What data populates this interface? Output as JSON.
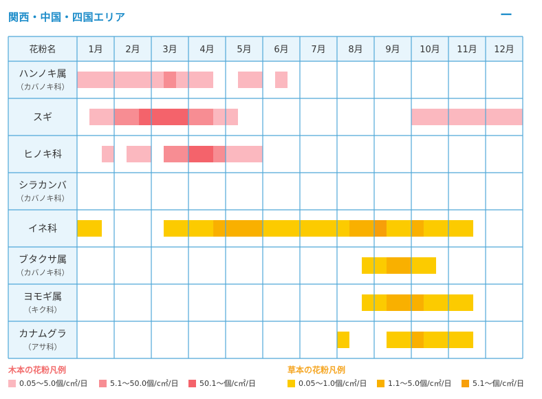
{
  "header": {
    "title": "関西・中国・四国エリア",
    "collapse_symbol": "ー",
    "title_color": "#1a8bc9"
  },
  "colors": {
    "grid_line": "#4fa8d8",
    "header_bg": "#e8f5fc",
    "name_col_bg": "#e8f5fc",
    "cell_bg": "#ffffff",
    "tree_legend_title": "#f26b6b",
    "grass_legend_title": "#f5a623"
  },
  "chart_data": {
    "type": "heatmap",
    "corner_label": "花粉名",
    "months": [
      "1月",
      "2月",
      "3月",
      "4月",
      "5月",
      "6月",
      "7月",
      "8月",
      "9月",
      "10月",
      "11月",
      "12月"
    ],
    "levels": {
      "t1": "#fbb8bf",
      "t2": "#f78d93",
      "t3": "#f4636b",
      "g1": "#fccb00",
      "g2": "#f9b000",
      "g3": "#f79f09"
    },
    "rows": [
      {
        "name": "ハンノキ属",
        "sub": "（カバノキ科）",
        "bars": [
          {
            "start": 1.0,
            "end": 3.333,
            "level": "t1"
          },
          {
            "start": 3.333,
            "end": 3.667,
            "level": "t2"
          },
          {
            "start": 3.667,
            "end": 4.667,
            "level": "t1"
          },
          {
            "start": 5.333,
            "end": 6.0,
            "level": "t1"
          },
          {
            "start": 6.333,
            "end": 6.667,
            "level": "t1"
          }
        ]
      },
      {
        "name": "スギ",
        "sub": "",
        "bars": [
          {
            "start": 1.333,
            "end": 2.0,
            "level": "t1"
          },
          {
            "start": 2.0,
            "end": 2.667,
            "level": "t2"
          },
          {
            "start": 2.667,
            "end": 4.0,
            "level": "t3"
          },
          {
            "start": 4.0,
            "end": 4.667,
            "level": "t2"
          },
          {
            "start": 4.667,
            "end": 5.333,
            "level": "t1"
          },
          {
            "start": 10.0,
            "end": 13.0,
            "level": "t1"
          }
        ]
      },
      {
        "name": "ヒノキ科",
        "sub": "",
        "bars": [
          {
            "start": 1.667,
            "end": 2.0,
            "level": "t1"
          },
          {
            "start": 2.333,
            "end": 3.0,
            "level": "t1"
          },
          {
            "start": 3.333,
            "end": 4.0,
            "level": "t2"
          },
          {
            "start": 4.0,
            "end": 4.667,
            "level": "t3"
          },
          {
            "start": 4.667,
            "end": 5.0,
            "level": "t2"
          },
          {
            "start": 5.0,
            "end": 6.0,
            "level": "t1"
          }
        ]
      },
      {
        "name": "シラカンバ",
        "sub": "（カバノキ科）",
        "bars": []
      },
      {
        "name": "イネ科",
        "sub": "",
        "bars": [
          {
            "start": 1.0,
            "end": 1.667,
            "level": "g1"
          },
          {
            "start": 3.333,
            "end": 4.667,
            "level": "g1"
          },
          {
            "start": 4.667,
            "end": 6.0,
            "level": "g2"
          },
          {
            "start": 6.0,
            "end": 8.333,
            "level": "g1"
          },
          {
            "start": 8.333,
            "end": 9.0,
            "level": "g2"
          },
          {
            "start": 9.0,
            "end": 9.333,
            "level": "g3"
          },
          {
            "start": 9.333,
            "end": 10.0,
            "level": "g1"
          },
          {
            "start": 10.0,
            "end": 10.333,
            "level": "g2"
          },
          {
            "start": 10.333,
            "end": 11.667,
            "level": "g1"
          }
        ]
      },
      {
        "name": "ブタクサ属",
        "sub": "（カバノキ科）",
        "bars": [
          {
            "start": 8.667,
            "end": 9.333,
            "level": "g1"
          },
          {
            "start": 9.333,
            "end": 10.0,
            "level": "g2"
          },
          {
            "start": 10.0,
            "end": 10.667,
            "level": "g1"
          }
        ]
      },
      {
        "name": "ヨモギ属",
        "sub": "（キク科）",
        "bars": [
          {
            "start": 8.667,
            "end": 9.333,
            "level": "g1"
          },
          {
            "start": 9.333,
            "end": 10.333,
            "level": "g2"
          },
          {
            "start": 10.333,
            "end": 11.667,
            "level": "g1"
          }
        ]
      },
      {
        "name": "カナムグラ",
        "sub": "（アサ科）",
        "bars": [
          {
            "start": 8.0,
            "end": 8.333,
            "level": "g1"
          },
          {
            "start": 9.333,
            "end": 10.0,
            "level": "g1"
          },
          {
            "start": 10.0,
            "end": 10.333,
            "level": "g2"
          },
          {
            "start": 10.333,
            "end": 11.667,
            "level": "g1"
          }
        ]
      }
    ]
  },
  "legend": {
    "tree": {
      "title": "木本の花粉凡例",
      "items": [
        {
          "label": "0.05～5.0個/c㎡/日",
          "level": "t1"
        },
        {
          "label": "5.1～50.0個/c㎡/日",
          "level": "t2"
        },
        {
          "label": "50.1～個/c㎡/日",
          "level": "t3"
        }
      ]
    },
    "grass": {
      "title": "草本の花粉凡例",
      "items": [
        {
          "label": "0.05～1.0個/c㎡/日",
          "level": "g1"
        },
        {
          "label": "1.1～5.0個/c㎡/日",
          "level": "g2"
        },
        {
          "label": "5.1～個/c㎡/日",
          "level": "g3"
        }
      ]
    }
  }
}
